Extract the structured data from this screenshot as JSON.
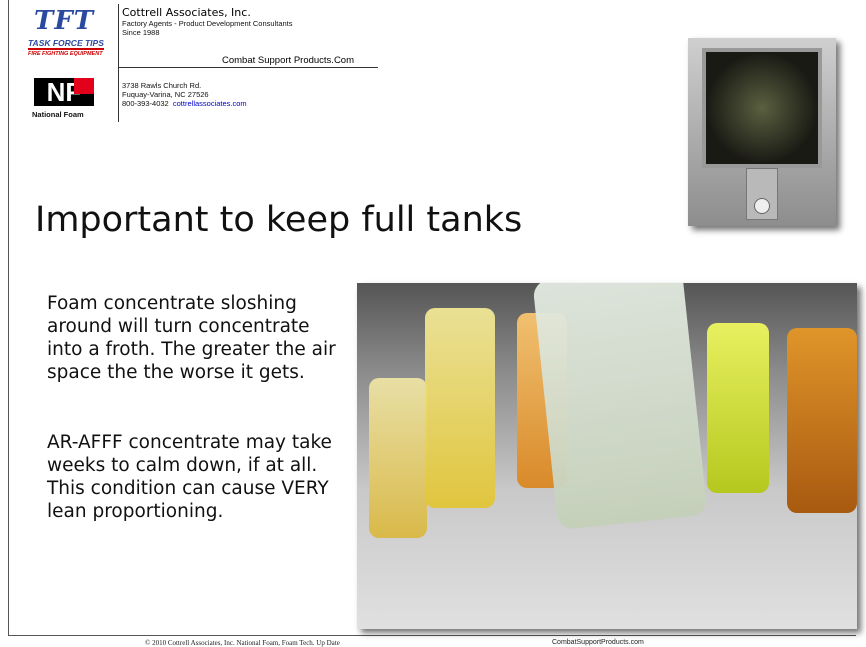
{
  "header": {
    "logos": [
      {
        "mark": "TFT",
        "name": "TASK FORCE TIPS",
        "tagline": "FIRE FIGHTING EQUIPMENT"
      },
      {
        "mark": "NF",
        "name": "National Foam"
      }
    ],
    "company": "Cottrell Associates, Inc.",
    "description": "Factory Agents - Product Development Consultants",
    "since": "Since 1988",
    "website": "Combat Support Products.Com",
    "address": [
      "3738 Rawls Church Rd.",
      "Fuquay-Varina, NC 27526"
    ],
    "phone": "800-393-4032",
    "link": "cottrellassociates.com"
  },
  "title": "Important to keep full tanks",
  "body": {
    "paragraphs": [
      "Foam concentrate sloshing around will turn concentrate into a froth. The greater the air space the the worse it gets.",
      "AR-AFFF concentrate may take weeks to calm down, if at all. This condition can cause VERY lean proportioning."
    ]
  },
  "footer": {
    "left": "© 2010 Cottrell Associates, Inc. National Foam,  Foam Tech. Up Date",
    "right": "CombatSupportProducts.com"
  }
}
